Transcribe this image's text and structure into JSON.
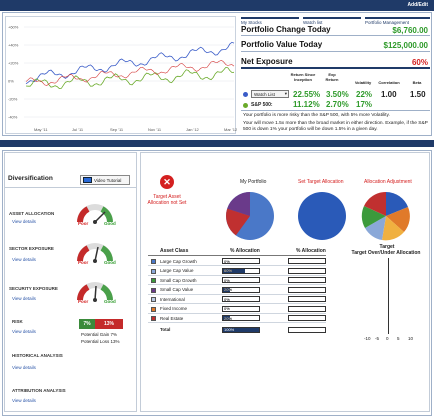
{
  "header": {
    "add_edit": "Add/Edit"
  },
  "chart": {
    "y_ticks": [
      "+60%",
      "+40%",
      "+20%",
      "0%",
      "-20%",
      "-40%"
    ],
    "x_ticks": [
      "May '11",
      "Jul '11",
      "Sep '11",
      "Nov '11",
      "Jan '12",
      "Mar '12"
    ],
    "legend_list": "Watch List"
  },
  "tabs": {
    "my_stocks": "My Stocks",
    "watch_list": "Watch list",
    "portfolio_management": "Portfolio Management"
  },
  "summary": {
    "change_label": "Portfolio Change Today",
    "change_value": "$6,760.00",
    "value_label": "Portfolio Value Today",
    "value_value": "$125,000.00",
    "exposure_label": "Net Exposure",
    "exposure_value": "60%"
  },
  "stats": {
    "headers": [
      "Return Since Inception",
      "Exp Return",
      "Volatility",
      "Correlation",
      "Beta"
    ],
    "watch_list_label": "Watch List",
    "watch_values": [
      "22.55%",
      "3.50%",
      "22%",
      "1.00",
      "1.50"
    ],
    "sp_label": "S&P 500:",
    "sp_values": [
      "11.12%",
      "2.70%",
      "17%"
    ],
    "note1": "Your portfolio is more risky than the S&P 500, with 5% more Volatility.",
    "note2": "Your will move 1.5x more than the broad market in either direction.  Example, if the S&P 500 is down 1% your portfolio will be down 1.5% in a given day."
  },
  "diversification": {
    "title": "Diversification",
    "video_tutorial": "Video Tutorial",
    "sections": [
      {
        "label": "ASSET   ALLOCATION",
        "link": "View details"
      },
      {
        "label": "SECTOR   EXPOSURE",
        "link": "View details"
      },
      {
        "label": "SECURITY EXPOSURE",
        "link": "View details"
      },
      {
        "label": "RISK",
        "link": "View details"
      },
      {
        "label": "HISTORICAL ANALYSIS",
        "link": "View details"
      },
      {
        "label": "ATTRIBUTION ANALYSIS",
        "link": "View details"
      }
    ],
    "gauge_poor": "Poor",
    "gauge_good": "Good",
    "risk_gain_box": "7%",
    "risk_loss_box": "13%",
    "potential_gain": "Potential Gain 7%",
    "potential_loss": "Potential Loss 13%",
    "target_alert": "Target Asset Allocation not Set"
  },
  "allocation": {
    "my_portfolio": "My Portfolio",
    "set_target": "Set Target Allocation",
    "adjustment": "Allocation Adjustment",
    "col_asset": "Asset Class",
    "col_alloc": "% Allocation",
    "col_alloc2": "% Allocation",
    "col_target": "Target Over/Under Allocation",
    "rows": [
      {
        "name": "Large Cap Growth",
        "pct": "0%",
        "fill": 0.0,
        "color": "#4a78c8"
      },
      {
        "name": "Large Cap Value",
        "pct": "60%",
        "fill": 0.6,
        "color": "#8aa8d8"
      },
      {
        "name": "Small Cap Growth",
        "pct": "0%",
        "fill": 0.0,
        "color": "#3c9a3c"
      },
      {
        "name": "Small Cap Value",
        "pct": "20%",
        "fill": 0.2,
        "color": "#6a3a8a"
      },
      {
        "name": "International",
        "pct": "0%",
        "fill": 0.0,
        "color": "#b8c8e0"
      },
      {
        "name": "Fixed Income",
        "pct": "0%",
        "fill": 0.0,
        "color": "#e07a2a"
      },
      {
        "name": "Real Estate",
        "pct": "20%",
        "fill": 0.2,
        "color": "#c03030"
      }
    ],
    "total_label": "Total",
    "total_pct": "100%",
    "axis_ticks": [
      "-10",
      "-5",
      "0",
      "5",
      "10"
    ]
  }
}
